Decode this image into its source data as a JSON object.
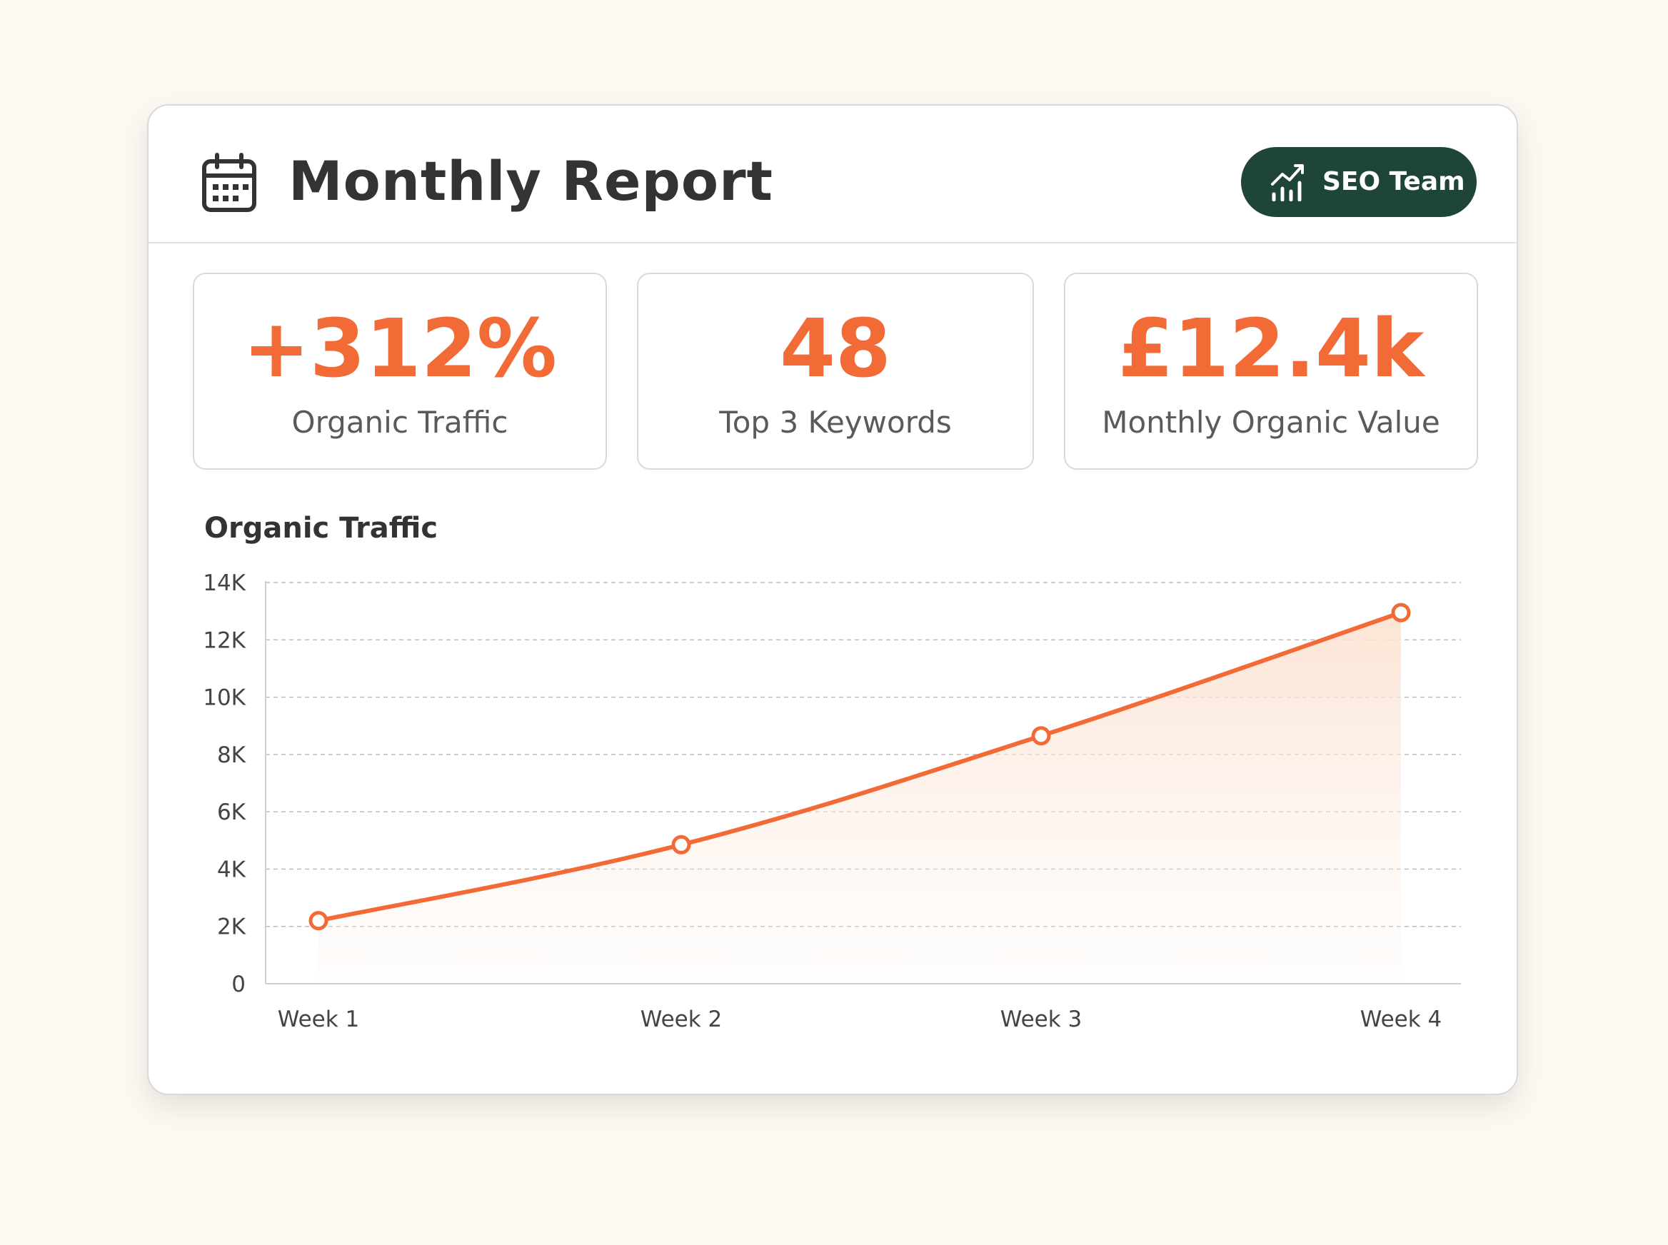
{
  "header": {
    "title": "Monthly Report",
    "calendar_icon": "calendar-icon",
    "badge": {
      "label": "SEO Team",
      "icon": "chart-growth-icon",
      "color": "#1f4536"
    }
  },
  "stats": [
    {
      "value": "+312%",
      "label": "Organic Traffic"
    },
    {
      "value": "48",
      "label": "Top 3 Keywords"
    },
    {
      "value": "£12.4k",
      "label": "Monthly Organic Value"
    }
  ],
  "accent_color": "#f26a35",
  "chart_data": {
    "type": "area",
    "title": "Organic Traffic",
    "categories": [
      "Week 1",
      "Week 2",
      "Week 3",
      "Week 4"
    ],
    "values": [
      2200,
      4850,
      8650,
      12950
    ],
    "ylim": [
      0,
      14000
    ],
    "yticks": [
      0,
      2000,
      4000,
      6000,
      8000,
      10000,
      12000,
      14000
    ],
    "ytick_labels": [
      "0",
      "2K",
      "4K",
      "6K",
      "8K",
      "10K",
      "12K",
      "14K"
    ],
    "grid": true,
    "legend": "none"
  }
}
